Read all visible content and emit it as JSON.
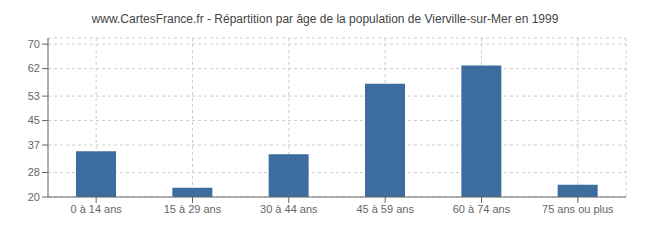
{
  "chart_data": {
    "type": "bar",
    "title": "www.CartesFrance.fr - Répartition par âge de la population de Vierville-sur-Mer en 1999",
    "categories": [
      "0 à 14 ans",
      "15 à 29 ans",
      "30 à 44 ans",
      "45 à 59 ans",
      "60 à 74 ans",
      "75 ans ou plus"
    ],
    "values": [
      35,
      23,
      34,
      57,
      63,
      24
    ],
    "color": "#3d6d9e",
    "ylim": [
      20,
      72
    ],
    "yticks": [
      20,
      28,
      37,
      45,
      53,
      62,
      70
    ],
    "grid": true
  }
}
